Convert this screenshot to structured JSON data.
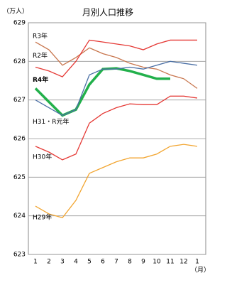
{
  "chart_data": {
    "type": "line",
    "title": "月別人口推移",
    "y_unit": "（万人）",
    "x_unit": "（月）",
    "categories": [
      "1",
      "2",
      "3",
      "4",
      "5",
      "6",
      "7",
      "8",
      "9",
      "10",
      "11",
      "12",
      "1"
    ],
    "ylim": [
      623,
      629
    ],
    "yticks": [
      623,
      624,
      625,
      626,
      627,
      628,
      629
    ],
    "grid": true,
    "series": [
      {
        "name": "R3年",
        "color": "#c8764e",
        "values": [
          628.5,
          628.3,
          627.9,
          628.1,
          628.35,
          628.2,
          628.1,
          627.95,
          627.85,
          627.8,
          627.65,
          627.55,
          627.3
        ]
      },
      {
        "name": "R2年",
        "color": "#e53935",
        "values": [
          627.85,
          627.75,
          627.6,
          628.0,
          628.55,
          628.5,
          628.45,
          628.4,
          628.3,
          628.45,
          628.55,
          628.55,
          628.55
        ]
      },
      {
        "name": "R4年",
        "color": "#22b04b",
        "values": [
          627.3,
          626.95,
          626.6,
          626.75,
          627.4,
          627.8,
          627.82,
          627.75,
          627.65,
          627.55,
          627.55,
          null,
          null
        ]
      },
      {
        "name": "H31・R元年",
        "color": "#4a6fa5",
        "values": [
          627.0,
          626.8,
          626.6,
          626.75,
          627.65,
          627.8,
          627.8,
          627.85,
          627.8,
          627.9,
          628.0,
          627.95,
          627.9
        ]
      },
      {
        "name": "H30年",
        "color": "#e53935",
        "values": [
          625.8,
          625.65,
          625.45,
          625.6,
          626.4,
          626.65,
          626.8,
          626.9,
          626.88,
          626.88,
          627.1,
          627.1,
          627.05
        ]
      },
      {
        "name": "H29年",
        "color": "#f2a530",
        "values": [
          624.25,
          624.05,
          623.95,
          624.4,
          625.1,
          625.25,
          625.4,
          625.5,
          625.5,
          625.6,
          625.8,
          625.85,
          625.8
        ]
      }
    ]
  }
}
